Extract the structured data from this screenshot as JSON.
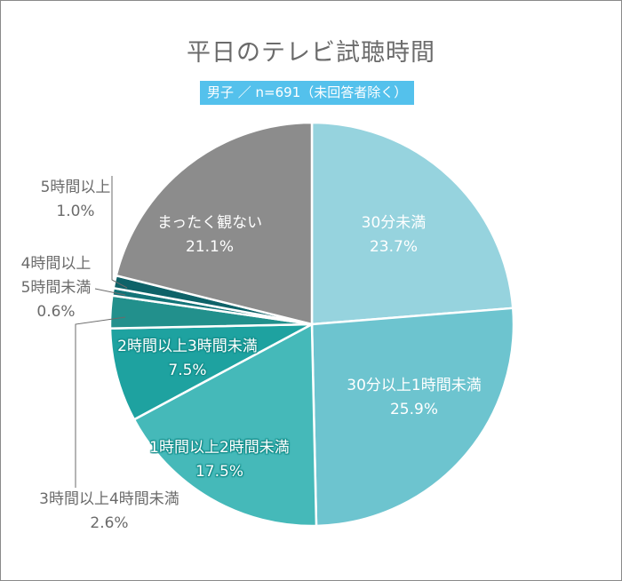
{
  "chart_data": {
    "type": "pie",
    "title": "平日のテレビ試聴時間",
    "subtitle": "男子 ／ n=691（未回答者除く）",
    "start": "12 o'clock",
    "direction": "clockwise",
    "unit": "%",
    "slices": [
      {
        "label": "30分未満",
        "value": 23.7,
        "value_label": "23.7%",
        "color": "#96d3de"
      },
      {
        "label": "30分以上1時間未満",
        "value": 25.9,
        "value_label": "25.9%",
        "color": "#6dc4cf"
      },
      {
        "label": "1時間以上2時間未満",
        "value": 17.5,
        "value_label": "17.5%",
        "color": "#45b9b9"
      },
      {
        "label": "2時間以上3時間未満",
        "value": 7.5,
        "value_label": "7.5%",
        "color": "#1ea2a0"
      },
      {
        "label": "3時間以上4時間未満",
        "value": 2.6,
        "value_label": "2.6%",
        "color": "#22908c"
      },
      {
        "label": "4時間以上5時間未満",
        "value": 0.6,
        "value_label": "0.6%",
        "color": "#137478",
        "label_lines": [
          "4時間以上",
          "5時間未満"
        ]
      },
      {
        "label": "5時間以上",
        "value": 1.0,
        "value_label": "1.0%",
        "color": "#0e6268"
      },
      {
        "label": "まったく観ない",
        "value": 21.1,
        "value_label": "21.1%",
        "color": "#8c8c8c"
      }
    ]
  }
}
